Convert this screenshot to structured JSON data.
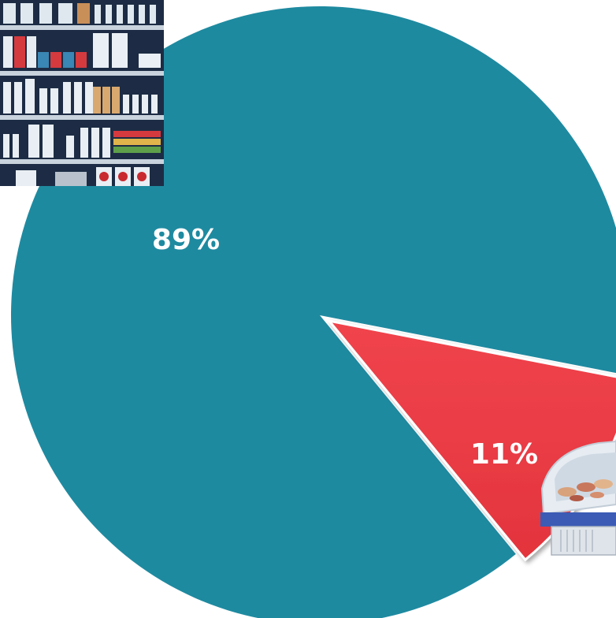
{
  "chart_data": {
    "type": "pie",
    "slices": [
      {
        "value": 89,
        "label": "89%",
        "color": "#1e8aa0"
      },
      {
        "value": 11,
        "label": "11%",
        "color": "#ee3a43"
      }
    ],
    "title": "",
    "legend": "none"
  },
  "images": {
    "shelves": "grocery-shelves-illustration",
    "freezer": "refrigerated-display-case-photo"
  }
}
